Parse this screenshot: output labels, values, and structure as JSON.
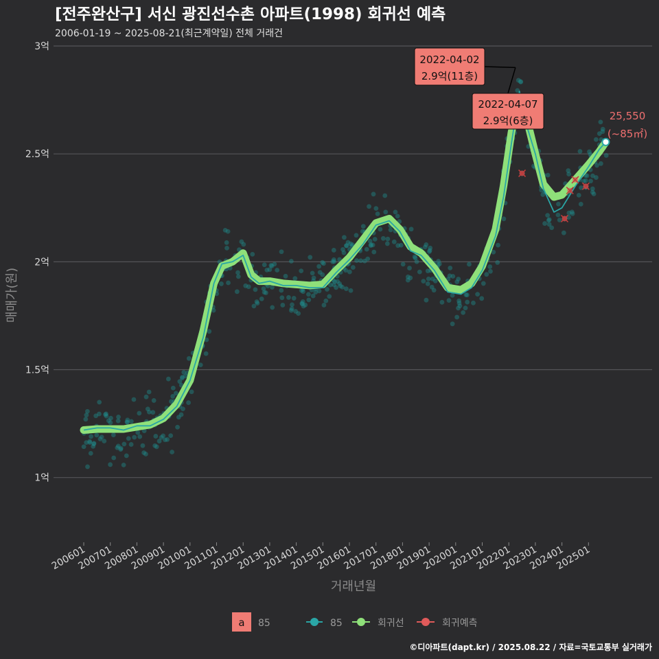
{
  "header": {
    "title": "[전주완산구] 서신 광진선수촌 아파트(1998) 회귀선 예측",
    "subtitle": "2006-01-19 ~ 2025-08-21(최근계약일) 전체 거래건"
  },
  "caption": "©디아파트(dapt.kr) / 2025.08.22 / 자료=국토교통부 실거래가",
  "colors": {
    "background": "#2b2b2d",
    "grid": "#555558",
    "raw_points": "#1f8a8a",
    "raw_line": "#2aa6a6",
    "regression": "#8fe07a",
    "prediction": "#e05a5a",
    "annotation_fill": "#f07c74"
  },
  "chart_data": {
    "type": "line",
    "xlabel": "거래년월",
    "ylabel": "매매가(원)",
    "x_ticks": [
      "200601",
      "200701",
      "200801",
      "200901",
      "201001",
      "201101",
      "201201",
      "201301",
      "201401",
      "201501",
      "201601",
      "201701",
      "201801",
      "201901",
      "202001",
      "202101",
      "202201",
      "202301",
      "202401",
      "202501"
    ],
    "y_ticks": [
      {
        "value": 1.0,
        "label": "1억"
      },
      {
        "value": 1.5,
        "label": "1.5억"
      },
      {
        "value": 2.0,
        "label": "2억"
      },
      {
        "value": 2.5,
        "label": "2.5억"
      },
      {
        "value": 3.0,
        "label": "3억"
      }
    ],
    "ylim": [
      0.7,
      3.0
    ],
    "xlim": [
      2005.7,
      2026.4
    ],
    "series": [
      {
        "name": "85",
        "kind": "monthly-average",
        "points": [
          [
            2006.0,
            1.22
          ],
          [
            2006.5,
            1.23
          ],
          [
            2007.0,
            1.23
          ],
          [
            2007.5,
            1.22
          ],
          [
            2008.0,
            1.24
          ],
          [
            2008.5,
            1.24
          ],
          [
            2009.0,
            1.27
          ],
          [
            2009.5,
            1.33
          ],
          [
            2010.0,
            1.45
          ],
          [
            2010.5,
            1.65
          ],
          [
            2010.9,
            1.9
          ],
          [
            2011.2,
            1.99
          ],
          [
            2011.6,
            2.0
          ],
          [
            2012.0,
            2.03
          ],
          [
            2012.3,
            1.93
          ],
          [
            2012.6,
            1.9
          ],
          [
            2013.0,
            1.91
          ],
          [
            2013.5,
            1.89
          ],
          [
            2014.0,
            1.89
          ],
          [
            2014.5,
            1.88
          ],
          [
            2015.0,
            1.88
          ],
          [
            2015.5,
            1.95
          ],
          [
            2016.0,
            2.01
          ],
          [
            2016.5,
            2.08
          ],
          [
            2017.0,
            2.17
          ],
          [
            2017.5,
            2.19
          ],
          [
            2017.9,
            2.14
          ],
          [
            2018.3,
            2.05
          ],
          [
            2018.7,
            2.03
          ],
          [
            2019.2,
            1.96
          ],
          [
            2019.7,
            1.86
          ],
          [
            2020.2,
            1.85
          ],
          [
            2020.6,
            1.88
          ],
          [
            2021.0,
            1.96
          ],
          [
            2021.5,
            2.12
          ],
          [
            2021.8,
            2.3
          ],
          [
            2022.1,
            2.55
          ],
          [
            2022.4,
            2.79
          ],
          [
            2022.7,
            2.62
          ],
          [
            2023.0,
            2.5
          ],
          [
            2023.3,
            2.34
          ],
          [
            2023.7,
            2.23
          ],
          [
            2024.0,
            2.25
          ],
          [
            2024.5,
            2.35
          ],
          [
            2025.0,
            2.44
          ],
          [
            2025.4,
            2.52
          ],
          [
            2025.65,
            2.555
          ]
        ]
      },
      {
        "name": "회귀선",
        "kind": "regression",
        "points": [
          [
            2006.0,
            1.22
          ],
          [
            2006.5,
            1.225
          ],
          [
            2007.0,
            1.225
          ],
          [
            2007.5,
            1.225
          ],
          [
            2008.0,
            1.235
          ],
          [
            2008.5,
            1.245
          ],
          [
            2009.0,
            1.275
          ],
          [
            2009.5,
            1.34
          ],
          [
            2010.0,
            1.45
          ],
          [
            2010.5,
            1.68
          ],
          [
            2010.9,
            1.9
          ],
          [
            2011.2,
            1.98
          ],
          [
            2011.6,
            2.0
          ],
          [
            2012.0,
            2.04
          ],
          [
            2012.3,
            1.94
          ],
          [
            2012.6,
            1.91
          ],
          [
            2013.0,
            1.91
          ],
          [
            2013.5,
            1.9
          ],
          [
            2014.0,
            1.895
          ],
          [
            2014.5,
            1.89
          ],
          [
            2015.0,
            1.895
          ],
          [
            2015.5,
            1.96
          ],
          [
            2016.0,
            2.02
          ],
          [
            2016.5,
            2.1
          ],
          [
            2017.0,
            2.18
          ],
          [
            2017.5,
            2.2
          ],
          [
            2017.9,
            2.15
          ],
          [
            2018.3,
            2.07
          ],
          [
            2018.7,
            2.04
          ],
          [
            2019.2,
            1.97
          ],
          [
            2019.7,
            1.88
          ],
          [
            2020.2,
            1.87
          ],
          [
            2020.6,
            1.9
          ],
          [
            2021.0,
            1.98
          ],
          [
            2021.5,
            2.15
          ],
          [
            2021.8,
            2.35
          ],
          [
            2022.1,
            2.6
          ],
          [
            2022.4,
            2.76
          ],
          [
            2022.7,
            2.65
          ],
          [
            2023.0,
            2.5
          ],
          [
            2023.3,
            2.36
          ],
          [
            2023.7,
            2.3
          ],
          [
            2024.0,
            2.31
          ],
          [
            2024.5,
            2.38
          ],
          [
            2025.0,
            2.45
          ],
          [
            2025.4,
            2.51
          ],
          [
            2025.65,
            2.555
          ]
        ]
      },
      {
        "name": "회귀예측",
        "kind": "prediction",
        "points": [
          [
            2022.5,
            2.41
          ],
          [
            2024.1,
            2.2
          ],
          [
            2024.3,
            2.33
          ],
          [
            2024.5,
            2.38
          ],
          [
            2024.9,
            2.35
          ]
        ]
      }
    ],
    "annotations": [
      {
        "date": "2022-04-02",
        "label": "2.9억(11층)",
        "x": 2022.25,
        "y": 2.9
      },
      {
        "date": "2022-04-07",
        "label": "2.9억(6층)",
        "x": 2022.27,
        "y": 2.9
      }
    ],
    "last_value": {
      "value": "25,550",
      "area": "(~85㎡)",
      "x": 2025.65,
      "y": 2.555
    }
  },
  "legend": {
    "area_key": "a",
    "area_label": "85",
    "items": [
      "85",
      "회귀선",
      "회귀예측"
    ]
  }
}
